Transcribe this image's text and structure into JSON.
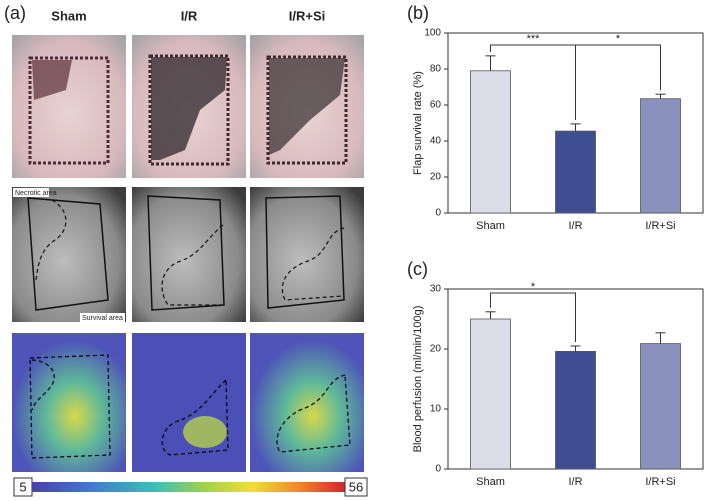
{
  "panel_a": {
    "label": "(a)",
    "columns": [
      "Sham",
      "I/R",
      "I/R+Si"
    ],
    "necrotic_label": "Necrotic area",
    "survival_label": "Survival area",
    "scale_min": "5",
    "scale_max": "56"
  },
  "chart_data": [
    {
      "type": "bar",
      "title": "(b)",
      "y_label": "Flap survival rate (%)",
      "categories": [
        "Sham",
        "I/R",
        "I/R+Si"
      ],
      "values": [
        79,
        45.5,
        63.5
      ],
      "errors": [
        8.3,
        4,
        2.5
      ],
      "colors": [
        "#dcdde9",
        "#3f4d93",
        "#8b91bd"
      ],
      "ylim": [
        0,
        100
      ],
      "yticks": [
        0,
        20,
        40,
        60,
        80,
        100
      ],
      "annotations": [
        {
          "text": "***"
        },
        {
          "text": "*"
        }
      ]
    },
    {
      "type": "bar",
      "title": "(c)",
      "y_label": "Blood perfusion (ml/min/100g)",
      "categories": [
        "Sham",
        "I/R",
        "I/R+Si"
      ],
      "values": [
        25,
        19.6,
        20.9
      ],
      "errors": [
        1.2,
        0.9,
        1.8
      ],
      "colors": [
        "#dcdde9",
        "#3f4d93",
        "#8b91bd"
      ],
      "ylim": [
        0,
        30
      ],
      "yticks": [
        0,
        10,
        20,
        30
      ],
      "annotations": [
        {
          "text": "*"
        }
      ]
    }
  ]
}
